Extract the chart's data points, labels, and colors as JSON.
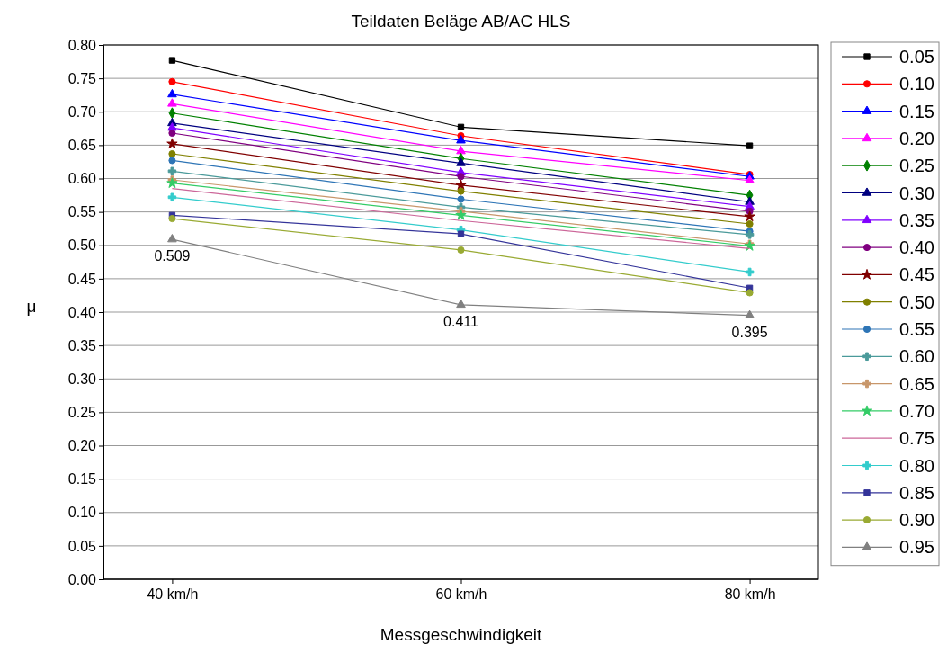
{
  "chart_data": {
    "type": "line",
    "title": "Teildaten Beläge AB/AC HLS",
    "xlabel": "Messgeschwindigkeit",
    "ylabel": "μ",
    "categories": [
      "40 km/h",
      "60 km/h",
      "80 km/h"
    ],
    "ylim": [
      0,
      0.8
    ],
    "yticks": [
      {
        "value": 0,
        "label": "0.00"
      },
      {
        "value": 0.05,
        "label": "0.05"
      },
      {
        "value": 0.1,
        "label": "0.10"
      },
      {
        "value": 0.15,
        "label": "0.15"
      },
      {
        "value": 0.2,
        "label": "0.20"
      },
      {
        "value": 0.25,
        "label": "0.25"
      },
      {
        "value": 0.3,
        "label": "0.30"
      },
      {
        "value": 0.35,
        "label": "0.35"
      },
      {
        "value": 0.4,
        "label": "0.40"
      },
      {
        "value": 0.45,
        "label": "0.45"
      },
      {
        "value": 0.5,
        "label": "0.50"
      },
      {
        "value": 0.55,
        "label": "0.55"
      },
      {
        "value": 0.6,
        "label": "0.60"
      },
      {
        "value": 0.65,
        "label": "0.65"
      },
      {
        "value": 0.7,
        "label": "0.70"
      },
      {
        "value": 0.75,
        "label": "0.75"
      },
      {
        "value": 0.8,
        "label": "0.80"
      }
    ],
    "grid": "y",
    "legend": "right",
    "series": [
      {
        "name": "0.05",
        "color": "#000000",
        "marker": "square",
        "values": [
          0.777,
          0.677,
          0.649
        ]
      },
      {
        "name": "0.10",
        "color": "#ff0000",
        "marker": "circle",
        "values": [
          0.745,
          0.664,
          0.606
        ]
      },
      {
        "name": "0.15",
        "color": "#0000ff",
        "marker": "triangle",
        "values": [
          0.726,
          0.657,
          0.603
        ]
      },
      {
        "name": "0.20",
        "color": "#ff00ff",
        "marker": "triangle",
        "values": [
          0.712,
          0.641,
          0.597
        ]
      },
      {
        "name": "0.25",
        "color": "#008000",
        "marker": "diamond",
        "values": [
          0.698,
          0.63,
          0.575
        ]
      },
      {
        "name": "0.30",
        "color": "#000080",
        "marker": "triangle",
        "values": [
          0.683,
          0.623,
          0.565
        ]
      },
      {
        "name": "0.35",
        "color": "#8000ff",
        "marker": "triangle",
        "values": [
          0.676,
          0.609,
          0.558
        ]
      },
      {
        "name": "0.40",
        "color": "#800080",
        "marker": "circle",
        "values": [
          0.668,
          0.603,
          0.551
        ]
      },
      {
        "name": "0.45",
        "color": "#800000",
        "marker": "star",
        "values": [
          0.652,
          0.59,
          0.543
        ]
      },
      {
        "name": "0.50",
        "color": "#808000",
        "marker": "circle",
        "values": [
          0.637,
          0.581,
          0.532
        ]
      },
      {
        "name": "0.55",
        "color": "#2e75b6",
        "marker": "circle",
        "values": [
          0.627,
          0.569,
          0.521
        ]
      },
      {
        "name": "0.60",
        "color": "#4a9a9a",
        "marker": "cross",
        "values": [
          0.611,
          0.557,
          0.516
        ]
      },
      {
        "name": "0.65",
        "color": "#c8966a",
        "marker": "cross",
        "values": [
          0.598,
          0.551,
          0.502
        ]
      },
      {
        "name": "0.70",
        "color": "#33cc66",
        "marker": "star",
        "values": [
          0.593,
          0.545,
          0.499
        ]
      },
      {
        "name": "0.75",
        "color": "#cc6699",
        "marker": "none",
        "values": [
          0.585,
          0.537,
          0.495
        ]
      },
      {
        "name": "0.80",
        "color": "#33cccc",
        "marker": "cross",
        "values": [
          0.572,
          0.523,
          0.46
        ]
      },
      {
        "name": "0.85",
        "color": "#333399",
        "marker": "square",
        "values": [
          0.545,
          0.517,
          0.436
        ]
      },
      {
        "name": "0.90",
        "color": "#99aa33",
        "marker": "circle",
        "values": [
          0.54,
          0.493,
          0.429
        ]
      },
      {
        "name": "0.95",
        "color": "#808080",
        "marker": "triangle",
        "values": [
          0.509,
          0.411,
          0.395
        ]
      }
    ],
    "annotations": [
      {
        "text": "0.509",
        "x": "40 km/h",
        "y": 0.509
      },
      {
        "text": "0.411",
        "x": "60 km/h",
        "y": 0.411
      },
      {
        "text": "0.395",
        "x": "80 km/h",
        "y": 0.395
      }
    ]
  }
}
